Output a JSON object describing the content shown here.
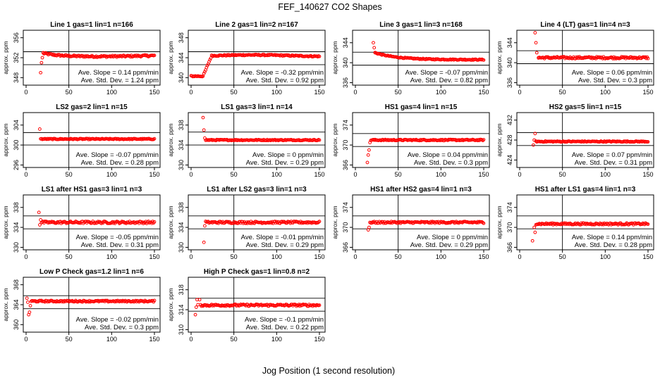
{
  "figure": {
    "title": "FEF_140627  CO2 Shapes",
    "xlabel": "Jog Position (1 second resolution)",
    "ylabel": "approx. ppm",
    "slope_label": "Ave. Slope = ",
    "slope_unit": " ppm/min",
    "std_label": "Ave. Std. Dev. = ",
    "std_unit": " ppm",
    "point_color": "#ff0000"
  },
  "chart_data": [
    {
      "type": "scatter",
      "title": "Line 1 gas=1 lin=1 n=166",
      "xlim": [
        0,
        150
      ],
      "xticks": [
        0,
        50,
        100,
        150
      ],
      "ylim": [
        346.5,
        357.5
      ],
      "yticks": [
        348,
        352,
        356
      ],
      "hlines": [
        350.6,
        353.2
      ],
      "vline": 50,
      "slope": "0.14",
      "std": "1.24",
      "points": [
        [
          17,
          349
        ],
        [
          18,
          351
        ],
        [
          19,
          352
        ],
        [
          20,
          353
        ]
      ],
      "series": {
        "x_start": 20,
        "x_end": 150,
        "level": 352.4,
        "noise": 0.18,
        "shape": "bump"
      }
    },
    {
      "type": "scatter",
      "title": "Line 2 gas=1 lin=2 n=167",
      "xlim": [
        0,
        150
      ],
      "xticks": [
        0,
        50,
        100,
        150
      ],
      "ylim": [
        338.5,
        349.5
      ],
      "yticks": [
        340,
        344,
        348
      ],
      "hlines": [
        342.6,
        345.2
      ],
      "vline": 50,
      "slope": "-0.32",
      "std": "0.92",
      "points": [],
      "series": {
        "x_start": 0,
        "x_end": 150,
        "level": 344.4,
        "noise": 0.12,
        "shape": "step",
        "step_low": 340.3,
        "step_start": 0,
        "step_end": 14,
        "rise_end": 24
      }
    },
    {
      "type": "scatter",
      "title": "Line 3 gas=1 lin=3 n=168",
      "xlim": [
        0,
        150
      ],
      "xticks": [
        0,
        50,
        100,
        150
      ],
      "ylim": [
        335.5,
        346.5
      ],
      "yticks": [
        336,
        340,
        344
      ],
      "hlines": [
        339.5,
        342.1
      ],
      "vline": 50,
      "slope": "-0.07",
      "std": "0.82",
      "points": [
        [
          21,
          344
        ],
        [
          22,
          343
        ],
        [
          23,
          342
        ]
      ],
      "series": {
        "x_start": 23,
        "x_end": 150,
        "level": 340.6,
        "noise": 0.1,
        "shape": "decay",
        "start_level": 342
      }
    },
    {
      "type": "scatter",
      "title": "Line 4 (LT) gas=1 lin=4 n=3",
      "xlim": [
        0,
        150
      ],
      "xticks": [
        0,
        50,
        100,
        150
      ],
      "ylim": [
        335.5,
        346.5
      ],
      "yticks": [
        336,
        340,
        344
      ],
      "hlines": [
        339.8,
        342.4
      ],
      "vline": 50,
      "slope": "0.06",
      "std": "0.3",
      "points": [
        [
          18,
          346
        ],
        [
          19,
          344
        ],
        [
          20,
          342
        ],
        [
          22,
          341
        ]
      ],
      "series": {
        "x_start": 22,
        "x_end": 150,
        "level": 341,
        "noise": 0.2,
        "shape": "flat"
      }
    },
    {
      "type": "scatter",
      "title": "LS2 gas=2 lin=1 n=15",
      "xlim": [
        0,
        150
      ],
      "xticks": [
        0,
        50,
        100,
        150
      ],
      "ylim": [
        295.5,
        306.5
      ],
      "yticks": [
        296,
        300,
        304
      ],
      "hlines": [
        300,
        302.5
      ],
      "vline": 50,
      "slope": "-0.07",
      "std": "0.28",
      "points": [
        [
          16,
          303.2
        ]
      ],
      "series": {
        "x_start": 17,
        "x_end": 150,
        "level": 301.2,
        "noise": 0.1,
        "shape": "flat"
      }
    },
    {
      "type": "scatter",
      "title": "LS1 gas=3 lin=1 n=14",
      "xlim": [
        0,
        150
      ],
      "xticks": [
        0,
        50,
        100,
        150
      ],
      "ylim": [
        329.5,
        340.5
      ],
      "yticks": [
        330,
        334,
        338
      ],
      "hlines": [
        334,
        336.6
      ],
      "vline": 50,
      "slope": "0",
      "std": "0.29",
      "points": [
        [
          14,
          339.5
        ],
        [
          15,
          337
        ],
        [
          16,
          335.4
        ]
      ],
      "series": {
        "x_start": 17,
        "x_end": 150,
        "level": 335,
        "noise": 0.1,
        "shape": "flat"
      }
    },
    {
      "type": "scatter",
      "title": "HS1 gas=4 lin=1 n=15",
      "xlim": [
        0,
        150
      ],
      "xticks": [
        0,
        50,
        100,
        150
      ],
      "ylim": [
        365.5,
        376.5
      ],
      "yticks": [
        366,
        370,
        374
      ],
      "hlines": [
        369.7,
        372.3
      ],
      "vline": 50,
      "slope": "0.04",
      "std": "0.3",
      "points": [
        [
          14,
          366.5
        ],
        [
          15,
          368
        ],
        [
          16,
          369
        ],
        [
          17,
          370.5
        ]
      ],
      "series": {
        "x_start": 18,
        "x_end": 150,
        "level": 371,
        "noise": 0.12,
        "shape": "flat"
      }
    },
    {
      "type": "scatter",
      "title": "HS2 gas=5 lin=1 n=15",
      "xlim": [
        0,
        150
      ],
      "xticks": [
        0,
        50,
        100,
        150
      ],
      "ylim": [
        422.5,
        433.5
      ],
      "yticks": [
        424,
        428,
        432
      ],
      "hlines": [
        426.9,
        429.5
      ],
      "vline": 50,
      "slope": "0.07",
      "std": "0.31",
      "points": [
        [
          16,
          427
        ],
        [
          17,
          428
        ],
        [
          18,
          429.3
        ]
      ],
      "series": {
        "x_start": 19,
        "x_end": 150,
        "level": 427.7,
        "noise": 0.1,
        "shape": "flat"
      }
    },
    {
      "type": "scatter",
      "title": "LS1 after HS1 gas=3 lin=1 n=3",
      "xlim": [
        0,
        150
      ],
      "xticks": [
        0,
        50,
        100,
        150
      ],
      "ylim": [
        329.5,
        340.5
      ],
      "yticks": [
        330,
        334,
        338
      ],
      "hlines": [
        333.7,
        336.3
      ],
      "vline": 50,
      "slope": "-0.05",
      "std": "0.31",
      "points": [
        [
          15,
          337
        ],
        [
          16,
          334.5
        ],
        [
          17,
          335.5
        ]
      ],
      "series": {
        "x_start": 18,
        "x_end": 150,
        "level": 335,
        "noise": 0.22,
        "shape": "flat"
      }
    },
    {
      "type": "scatter",
      "title": "LS1 after LS2 gas=3 lin=1 n=3",
      "xlim": [
        0,
        150
      ],
      "xticks": [
        0,
        50,
        100,
        150
      ],
      "ylim": [
        329.5,
        340.5
      ],
      "yticks": [
        330,
        334,
        338
      ],
      "hlines": [
        333.7,
        336.3
      ],
      "vline": 50,
      "slope": "-0.01",
      "std": "0.29",
      "points": [
        [
          15,
          331
        ],
        [
          16,
          334.3
        ],
        [
          17,
          335.2
        ]
      ],
      "series": {
        "x_start": 18,
        "x_end": 150,
        "level": 335,
        "noise": 0.2,
        "shape": "flat"
      }
    },
    {
      "type": "scatter",
      "title": "HS1 after HS2 gas=4 lin=1 n=3",
      "xlim": [
        0,
        150
      ],
      "xticks": [
        0,
        50,
        100,
        150
      ],
      "ylim": [
        365.5,
        376.5
      ],
      "yticks": [
        366,
        370,
        374
      ],
      "hlines": [
        369.7,
        372.3
      ],
      "vline": 50,
      "slope": "0",
      "std": "0.29",
      "points": [
        [
          15,
          369.5
        ],
        [
          16,
          370
        ],
        [
          17,
          371
        ]
      ],
      "series": {
        "x_start": 18,
        "x_end": 150,
        "level": 371,
        "noise": 0.18,
        "shape": "flat"
      }
    },
    {
      "type": "scatter",
      "title": "HS1 after LS1 gas=4 lin=1 n=3",
      "xlim": [
        0,
        150
      ],
      "xticks": [
        0,
        50,
        100,
        150
      ],
      "ylim": [
        365.5,
        376.5
      ],
      "yticks": [
        366,
        370,
        374
      ],
      "hlines": [
        369.7,
        372.3
      ],
      "vline": 50,
      "slope": "0.14",
      "std": "0.28",
      "points": [
        [
          15,
          367.3
        ],
        [
          17,
          370
        ],
        [
          18,
          369
        ]
      ],
      "series": {
        "x_start": 19,
        "x_end": 150,
        "level": 370.7,
        "noise": 0.18,
        "shape": "flat"
      }
    },
    {
      "type": "scatter",
      "title": "Low P Check gas=1.2 lin=1 n=6",
      "xlim": [
        0,
        150
      ],
      "xticks": [
        0,
        50,
        100,
        150
      ],
      "ylim": [
        358.5,
        369.5
      ],
      "yticks": [
        360,
        364,
        368
      ],
      "hlines": [
        363.2,
        365.8
      ],
      "vline": 50,
      "slope": "-0.02",
      "std": "0.3",
      "points": [
        [
          1,
          365.3
        ],
        [
          2,
          364.5
        ],
        [
          3,
          362
        ],
        [
          4,
          362.5
        ],
        [
          5,
          363.8
        ]
      ],
      "series": {
        "x_start": 6,
        "x_end": 150,
        "level": 364.7,
        "noise": 0.15,
        "shape": "flat"
      }
    },
    {
      "type": "scatter",
      "title": "High P Check gas=1 lin=0.8 n=2",
      "xlim": [
        0,
        150
      ],
      "xticks": [
        0,
        50,
        100,
        150
      ],
      "ylim": [
        309.5,
        320.5
      ],
      "yticks": [
        310,
        314,
        318
      ],
      "hlines": [
        313.7,
        316.3
      ],
      "vline": 50,
      "slope": "-0.1",
      "std": "0.22",
      "points": [
        [
          5,
          313
        ],
        [
          6,
          314.5
        ],
        [
          7,
          316
        ],
        [
          8,
          315
        ],
        [
          10,
          316
        ]
      ],
      "series": {
        "x_start": 11,
        "x_end": 150,
        "level": 314.9,
        "noise": 0.2,
        "shape": "flat"
      }
    }
  ]
}
